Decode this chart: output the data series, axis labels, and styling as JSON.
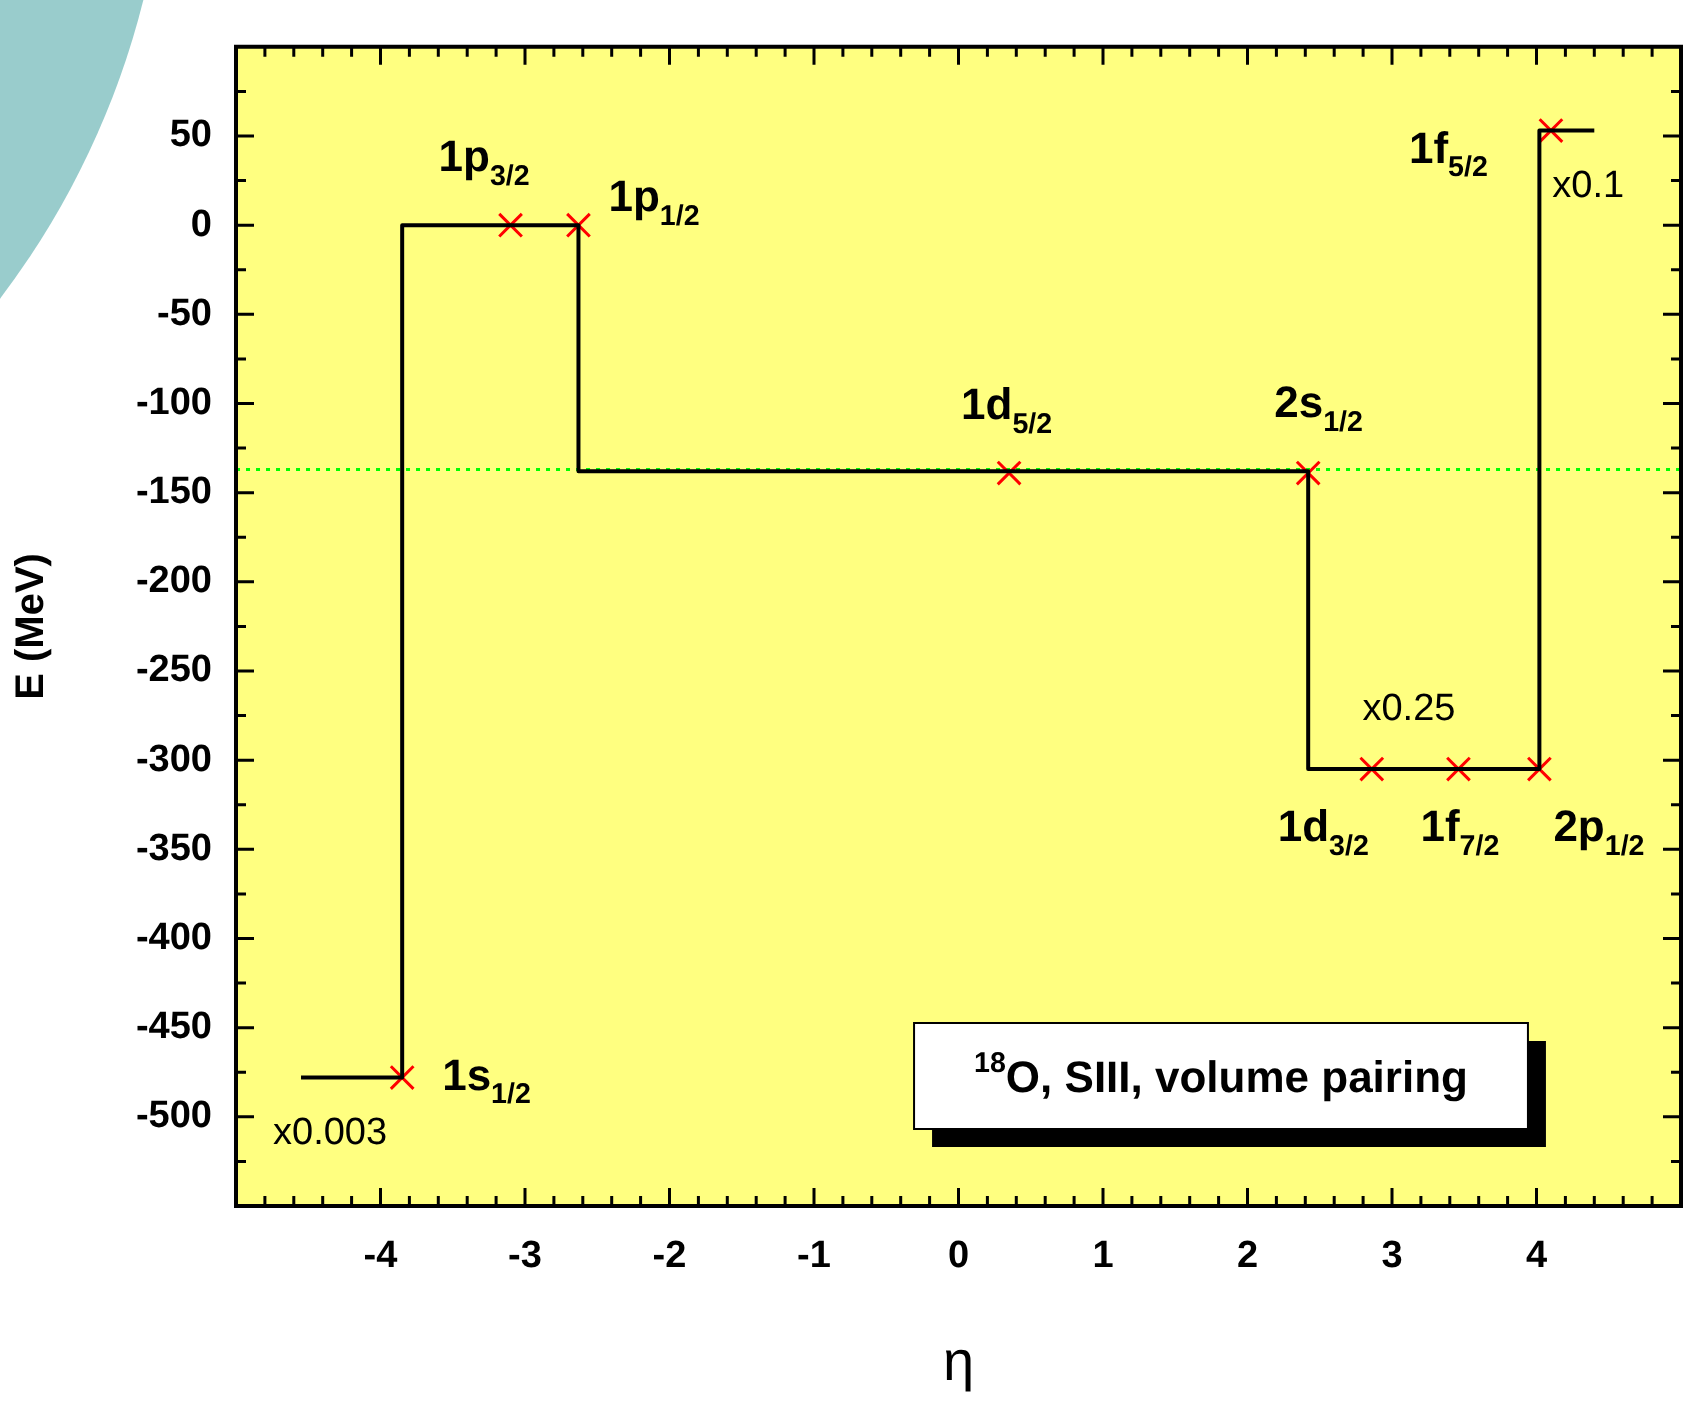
{
  "chart_data": {
    "type": "line",
    "xlabel": "η",
    "ylabel": "E (MeV)",
    "xlim": [
      -5,
      5
    ],
    "ylim": [
      -550,
      100
    ],
    "xticks": [
      -4,
      -3,
      -2,
      -1,
      0,
      1,
      2,
      3,
      4,
      {
        "value": -4.8,
        "label": null
      },
      {
        "value": -4.6,
        "label": null
      },
      {
        "value": -4.4,
        "label": null
      },
      {
        "value": -4.2,
        "label": null
      },
      {
        "value": -3.8,
        "label": null
      },
      {
        "value": -3.6,
        "label": null
      },
      {
        "value": -3.4,
        "label": null
      },
      {
        "value": -3.2,
        "label": null
      },
      {
        "value": -2.8,
        "label": null
      },
      {
        "value": -2.6,
        "label": null
      },
      {
        "value": -2.4,
        "label": null
      },
      {
        "value": -2.2,
        "label": null
      },
      {
        "value": -1.8,
        "label": null
      },
      {
        "value": -1.6,
        "label": null
      },
      {
        "value": -1.4,
        "label": null
      },
      {
        "value": -1.2,
        "label": null
      },
      {
        "value": -0.8,
        "label": null
      },
      {
        "value": -0.6,
        "label": null
      },
      {
        "value": -0.4,
        "label": null
      },
      {
        "value": -0.2,
        "label": null
      },
      {
        "value": 0.2,
        "label": null
      },
      {
        "value": 0.4,
        "label": null
      },
      {
        "value": 0.6,
        "label": null
      },
      {
        "value": 0.8,
        "label": null
      },
      {
        "value": 1.2,
        "label": null
      },
      {
        "value": 1.4,
        "label": null
      },
      {
        "value": 1.6,
        "label": null
      },
      {
        "value": 1.8,
        "label": null
      },
      {
        "value": 2.2,
        "label": null
      },
      {
        "value": 2.4,
        "label": null
      },
      {
        "value": 2.6,
        "label": null
      },
      {
        "value": 2.8,
        "label": null
      },
      {
        "value": 3.2,
        "label": null
      },
      {
        "value": 3.4,
        "label": null
      },
      {
        "value": 3.6,
        "label": null
      },
      {
        "value": 3.8,
        "label": null
      },
      {
        "value": 4.2,
        "label": null
      },
      {
        "value": 4.4,
        "label": null
      },
      {
        "value": 4.6,
        "label": null
      },
      {
        "value": 4.8,
        "label": null
      }
    ],
    "yticks": [
      -500,
      -450,
      -400,
      -350,
      -300,
      -250,
      -200,
      -150,
      -100,
      -50,
      0,
      50,
      {
        "value": -525,
        "label": null
      },
      {
        "value": -475,
        "label": null
      },
      {
        "value": -425,
        "label": null
      },
      {
        "value": -375,
        "label": null
      },
      {
        "value": -325,
        "label": null
      },
      {
        "value": -275,
        "label": null
      },
      {
        "value": -225,
        "label": null
      },
      {
        "value": -175,
        "label": null
      },
      {
        "value": -125,
        "label": null
      },
      {
        "value": -75,
        "label": null
      },
      {
        "value": -25,
        "label": null
      },
      {
        "value": 25,
        "label": null
      },
      {
        "value": 75,
        "label": null
      }
    ],
    "series": [
      {
        "type": "line",
        "color": "#000000",
        "marker": "none",
        "line_style": "solid",
        "x": [
          -4.55,
          -3.85,
          -3.85,
          -2.63,
          -2.63,
          2.42,
          2.42,
          4.02,
          4.02,
          4.4
        ],
        "values": [
          -478,
          -478,
          0,
          0,
          -138,
          -138,
          -305,
          -305,
          53,
          53
        ]
      },
      {
        "type": "scatter",
        "color": "#ff0000",
        "marker": "cross",
        "x": [
          -3.85,
          -3.1,
          -2.63,
          0.35,
          2.42,
          2.86,
          3.46,
          4.02,
          4.1
        ],
        "values": [
          -478,
          0,
          0,
          -139,
          -139,
          -305,
          -305,
          -305,
          53
        ]
      }
    ],
    "ref_lines": [
      {
        "axis": "y",
        "value": -137,
        "color": "#00ff00",
        "line_style": "dotted"
      }
    ],
    "annotations": [
      {
        "text": "1s$_{1/2}$",
        "x": -3.85,
        "y": -478
      },
      {
        "text": "1p$_{3/2}$",
        "x": -3.1,
        "y": 0
      },
      {
        "text": "1p$_{1/2}$",
        "x": -2.63,
        "y": 0
      },
      {
        "text": "1d$_{5/2}$",
        "x": 0.35,
        "y": -139
      },
      {
        "text": "2s$_{1/2}$",
        "x": 2.42,
        "y": -139
      },
      {
        "text": "1d$_{3/2}$",
        "x": 2.86,
        "y": -305
      },
      {
        "text": "1f$_{7/2}$",
        "x": 3.46,
        "y": -305
      },
      {
        "text": "2p$_{1/2}$",
        "x": 4.02,
        "y": -305
      },
      {
        "text": "1f$_{5/2}$",
        "x": 4.1,
        "y": 53
      },
      {
        "text": "x0.003",
        "x": -4.55,
        "y": -478
      },
      {
        "text": "x0.25",
        "x": 3.46,
        "y": -305
      },
      {
        "text": "x0.1",
        "x": 4.4,
        "y": 53
      },
      "$^{18}$O, SIII, volume pairing"
    ]
  }
}
